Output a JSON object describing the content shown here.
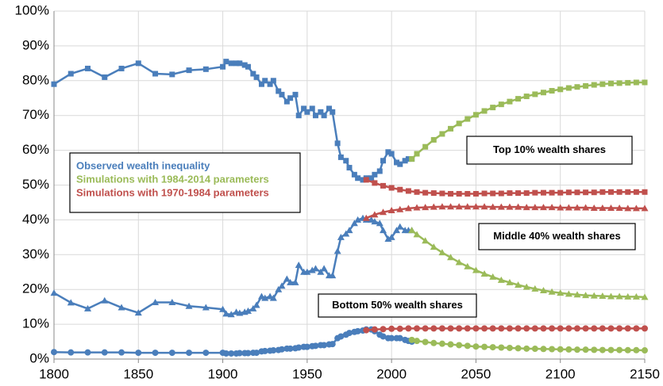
{
  "chart_data": {
    "type": "line",
    "xlim": [
      1800,
      2150
    ],
    "xticks": [
      1800,
      1850,
      1900,
      1950,
      2000,
      2050,
      2100,
      2150
    ],
    "ylim": [
      0,
      100
    ],
    "yticks": [
      {
        "value": 0,
        "label": "0%"
      },
      {
        "value": 10,
        "label": "10%"
      },
      {
        "value": 20,
        "label": "20%"
      },
      {
        "value": 30,
        "label": "30%"
      },
      {
        "value": 40,
        "label": "40%"
      },
      {
        "value": 50,
        "label": "50%"
      },
      {
        "value": 60,
        "label": "60%"
      },
      {
        "value": 70,
        "label": "70%"
      },
      {
        "value": 80,
        "label": "80%"
      },
      {
        "value": 90,
        "label": "90%"
      },
      {
        "value": 100,
        "label": "100%"
      }
    ],
    "grid": true,
    "series": [
      {
        "name": "Observed wealth inequality",
        "color": "#4a7ebb",
        "x": [
          1800,
          1810,
          1820,
          1830,
          1840,
          1850,
          1860,
          1870,
          1880,
          1890,
          1900,
          1902,
          1905,
          1908,
          1910,
          1913,
          1915,
          1918,
          1920,
          1923,
          1925,
          1928,
          1930,
          1933,
          1935,
          1938,
          1940,
          1943,
          1945,
          1948,
          1950,
          1953,
          1955,
          1958,
          1960,
          1963,
          1965,
          1968,
          1970,
          1973,
          1975,
          1978,
          1980,
          1983,
          1985,
          1988,
          1990,
          1993,
          1995,
          1998,
          2000,
          2003,
          2005,
          2008,
          2010,
          2012
        ],
        "lines": [
          {
            "marker": "square",
            "values": [
              79,
              82,
              83.5,
              81,
              83.5,
              85,
              82,
              81.8,
              83,
              83.3,
              84,
              85.5,
              85,
              85,
              85,
              84.5,
              84,
              82,
              81,
              79,
              80,
              79,
              80,
              77,
              76,
              74,
              75,
              76,
              70,
              72,
              71,
              72,
              70,
              71,
              70,
              72,
              71,
              62,
              58,
              57,
              55,
              53,
              52,
              51.5,
              52,
              52,
              53,
              54,
              57,
              59.5,
              59,
              56.5,
              56,
              57,
              57.5,
              57.5
            ]
          },
          {
            "marker": "triangle",
            "values": [
              19,
              16.2,
              14.5,
              16.8,
              14.8,
              13.3,
              16.3,
              16.3,
              15.2,
              14.8,
              14.3,
              13,
              12.8,
              13.5,
              13.2,
              13.5,
              13.8,
              14.5,
              15.5,
              18,
              17.5,
              18,
              17.5,
              20,
              21,
              23,
              22,
              22,
              27,
              25,
              25,
              25.5,
              26,
              25,
              26,
              24,
              24,
              31,
              35,
              36,
              37,
              39,
              40,
              40.5,
              40,
              40,
              39.5,
              39,
              37,
              34.5,
              35,
              37,
              38,
              37,
              37,
              37
            ]
          },
          {
            "marker": "circle",
            "values": [
              2,
              1.9,
              1.9,
              1.9,
              1.9,
              1.8,
              1.8,
              1.8,
              1.8,
              1.8,
              1.8,
              1.6,
              1.6,
              1.6,
              1.7,
              1.7,
              1.7,
              1.8,
              1.8,
              2.2,
              2.3,
              2.4,
              2.5,
              2.6,
              2.8,
              3,
              3,
              3.1,
              3.3,
              3.5,
              3.5,
              3.7,
              3.8,
              4,
              4,
              4.2,
              4.3,
              6,
              6.5,
              7,
              7.5,
              7.8,
              8,
              8.2,
              8.5,
              8.5,
              8,
              7,
              6.5,
              6,
              6,
              6,
              6,
              5.5,
              5.2,
              5
            ]
          }
        ]
      },
      {
        "name": "Simulations with 1984-2014 parameters",
        "color": "#9bbb59",
        "x": [
          2012,
          2015,
          2020,
          2025,
          2030,
          2035,
          2040,
          2045,
          2050,
          2055,
          2060,
          2065,
          2070,
          2075,
          2080,
          2085,
          2090,
          2095,
          2100,
          2105,
          2110,
          2115,
          2120,
          2125,
          2130,
          2135,
          2140,
          2145,
          2150
        ],
        "lines": [
          {
            "marker": "square",
            "values": [
              57.5,
              59,
              61,
              63,
              64.7,
              66.2,
              67.7,
              69,
              70.2,
              71.3,
              72.3,
              73.2,
              74,
              74.8,
              75.5,
              76.1,
              76.6,
              77.1,
              77.5,
              77.9,
              78.2,
              78.5,
              78.8,
              79,
              79.2,
              79.3,
              79.4,
              79.5,
              79.5
            ]
          },
          {
            "marker": "triangle",
            "values": [
              37,
              35.8,
              34,
              32.2,
              30.6,
              29.2,
              27.8,
              26.6,
              25.5,
              24.5,
              23.6,
              22.7,
              22,
              21.3,
              20.7,
              20.2,
              19.7,
              19.3,
              19,
              18.7,
              18.5,
              18.3,
              18.2,
              18.1,
              18,
              18,
              17.9,
              17.9,
              17.8
            ]
          },
          {
            "marker": "circle",
            "values": [
              5.5,
              5.2,
              4.9,
              4.6,
              4.4,
              4.2,
              4.0,
              3.8,
              3.6,
              3.5,
              3.4,
              3.3,
              3.2,
              3.1,
              3.0,
              2.95,
              2.9,
              2.85,
              2.8,
              2.75,
              2.7,
              2.7,
              2.65,
              2.6,
              2.6,
              2.6,
              2.55,
              2.55,
              2.5
            ]
          }
        ]
      },
      {
        "name": "Simulations with 1970-1984 parameters",
        "color": "#c0504d",
        "x": [
          1985,
          1990,
          1995,
          2000,
          2005,
          2010,
          2015,
          2020,
          2025,
          2030,
          2035,
          2040,
          2045,
          2050,
          2055,
          2060,
          2065,
          2070,
          2075,
          2080,
          2085,
          2090,
          2095,
          2100,
          2105,
          2110,
          2115,
          2120,
          2125,
          2130,
          2135,
          2140,
          2145,
          2150
        ],
        "lines": [
          {
            "marker": "square",
            "values": [
              51.5,
              50.6,
              49.8,
              49.2,
              48.7,
              48.3,
              48.0,
              47.8,
              47.7,
              47.6,
              47.5,
              47.5,
              47.5,
              47.5,
              47.6,
              47.6,
              47.6,
              47.7,
              47.7,
              47.7,
              47.8,
              47.8,
              47.8,
              47.8,
              47.9,
              47.9,
              47.9,
              47.9,
              48,
              48,
              48,
              48,
              48,
              48
            ]
          },
          {
            "marker": "triangle",
            "values": [
              40.5,
              41.5,
              42.2,
              42.7,
              43.0,
              43.3,
              43.5,
              43.6,
              43.7,
              43.8,
              43.8,
              43.8,
              43.8,
              43.8,
              43.8,
              43.7,
              43.7,
              43.7,
              43.7,
              43.6,
              43.6,
              43.6,
              43.6,
              43.5,
              43.5,
              43.5,
              43.5,
              43.4,
              43.4,
              43.4,
              43.4,
              43.3,
              43.3,
              43.3
            ]
          },
          {
            "marker": "circle",
            "values": [
              8.3,
              8.5,
              8.6,
              8.7,
              8.7,
              8.8,
              8.8,
              8.8,
              8.8,
              8.8,
              8.8,
              8.8,
              8.8,
              8.8,
              8.8,
              8.8,
              8.8,
              8.8,
              8.8,
              8.8,
              8.8,
              8.8,
              8.8,
              8.8,
              8.8,
              8.8,
              8.8,
              8.8,
              8.8,
              8.8,
              8.8,
              8.8,
              8.8,
              8.8
            ]
          }
        ]
      }
    ],
    "annotations": [
      {
        "text": "Top 10% wealth shares"
      },
      {
        "text": "Middle 40% wealth shares"
      },
      {
        "text": "Bottom 50% wealth shares"
      }
    ]
  }
}
